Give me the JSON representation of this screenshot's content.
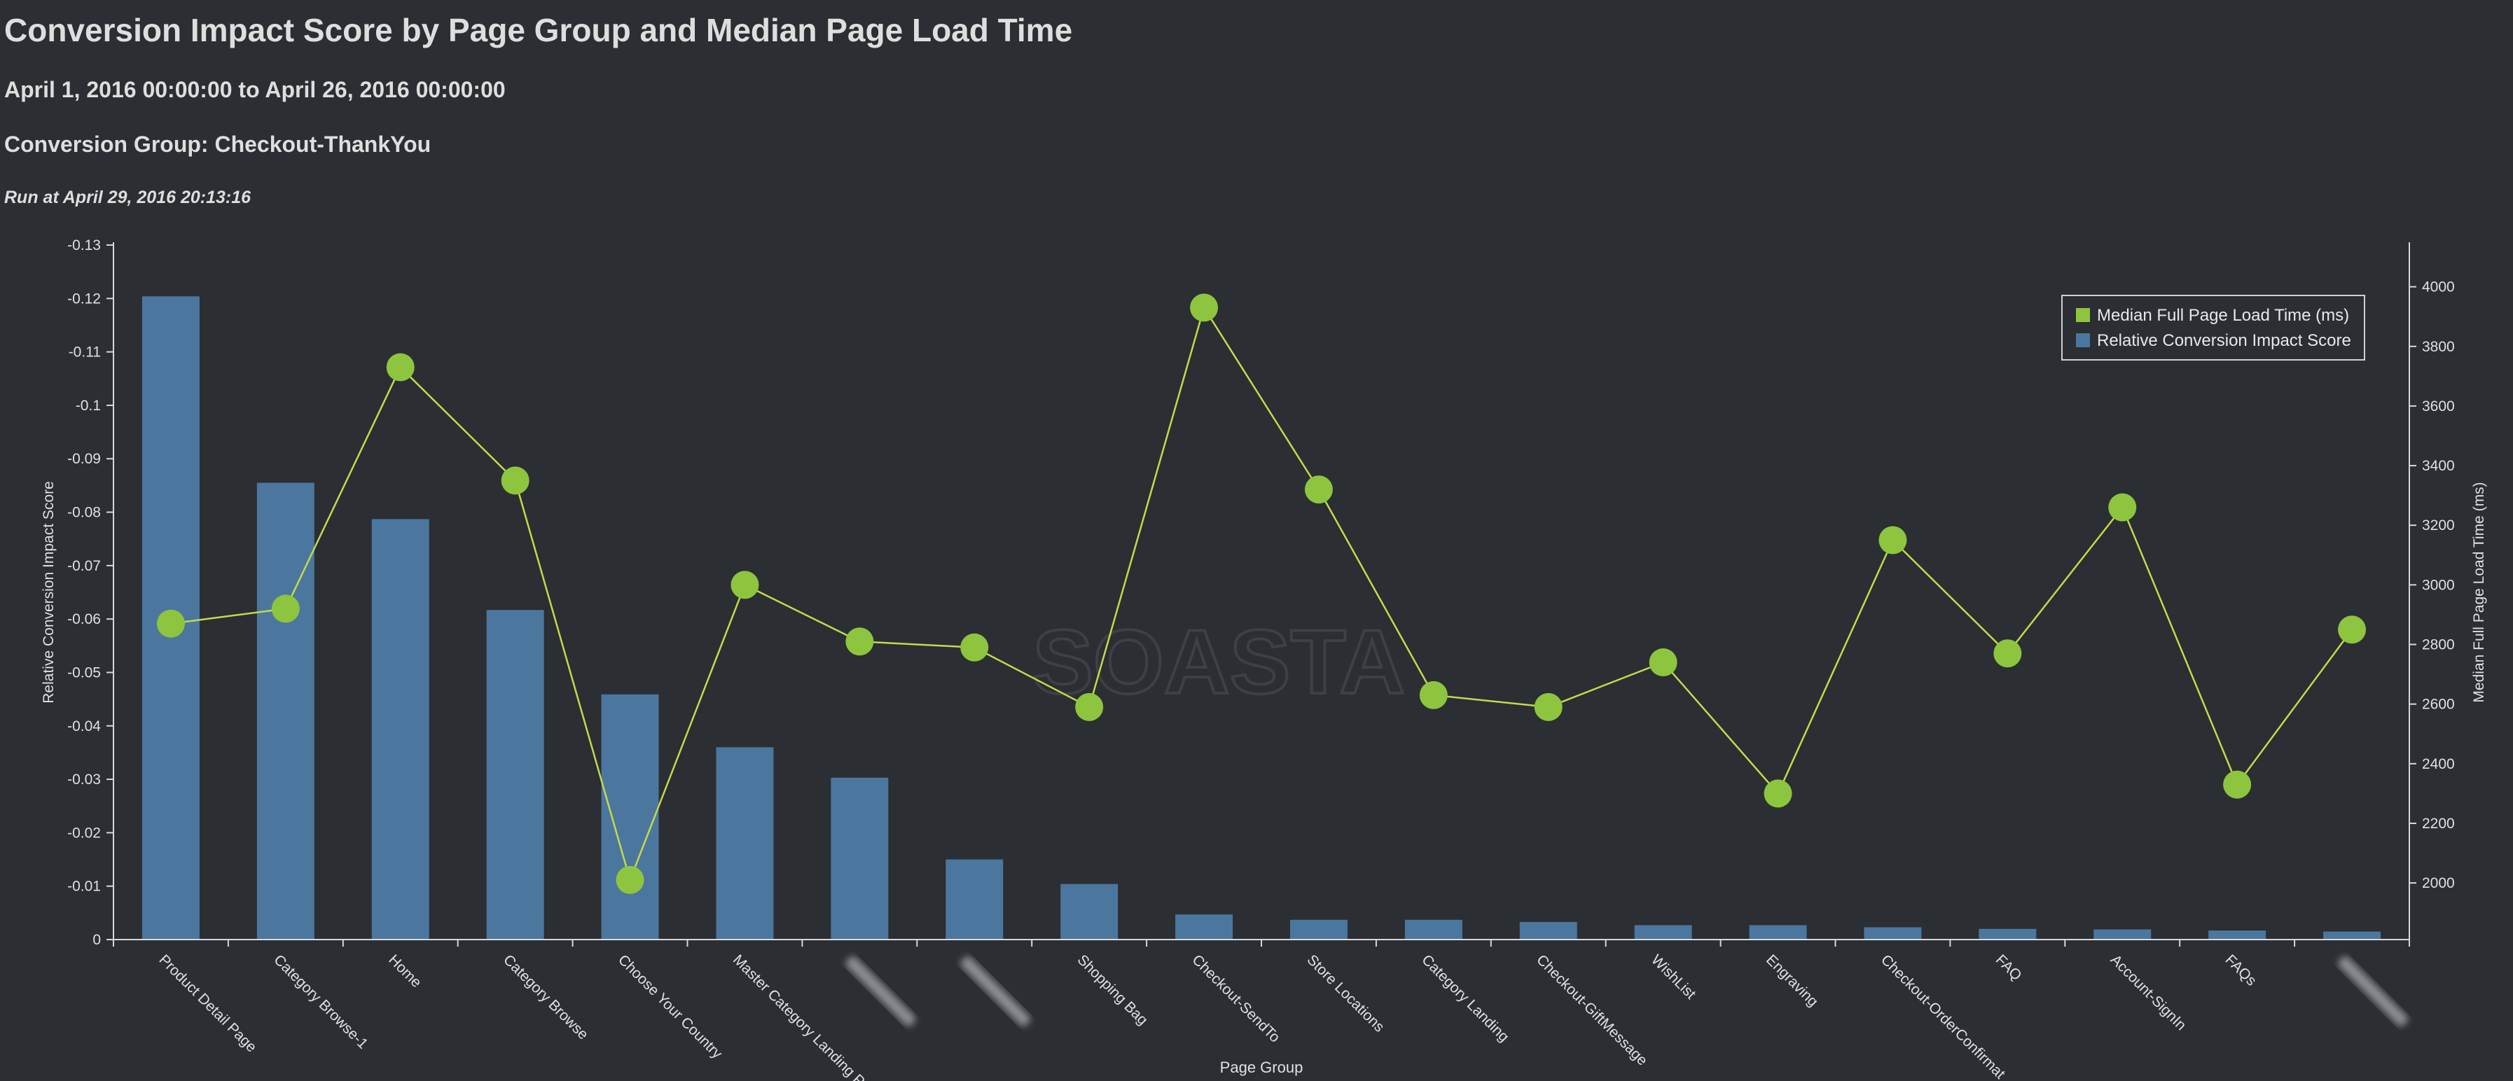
{
  "header": {
    "title": "Conversion Impact Score by Page Group and Median Page Load Time",
    "date_range": "April 1, 2016 00:00:00 to April 26, 2016 00:00:00",
    "conversion_group": "Conversion Group: Checkout-ThankYou",
    "run_at": "Run at April 29, 2016 20:13:16"
  },
  "watermark": "SOASTA",
  "colors": {
    "background": "#2b2e33",
    "bar": "#4b779e",
    "line": "#c5d94a",
    "point": "#8dc53e",
    "axis": "#d8d8d8"
  },
  "chart_data": {
    "type": "bar+line",
    "xlabel": "Page Group",
    "ylabel_left": "Relative Conversion Impact Score",
    "ylabel_right": "Median Full Page Load Time (ms)",
    "legend_position": "top-right",
    "categories": [
      "Product Detail Page",
      "Category Browse-1",
      "Home",
      "Category Browse",
      "Choose Your Country",
      "Master Category Landing P",
      "",
      "",
      "Shopping Bag",
      "Checkout-SendTo",
      "Store Locations",
      "Category Landing",
      "Checkout-GiftMessage",
      "WishList",
      "Engraving",
      "Checkout-OrderConfirmat",
      "FAQ",
      "Account-SignIn",
      "FAQs",
      ""
    ],
    "blurred_category_indices": [
      6,
      7,
      19
    ],
    "left_axis": {
      "ticks": [
        "-0.13",
        "-0.12",
        "-0.11",
        "-0.1",
        "-0.09",
        "-0.08",
        "-0.07",
        "-0.06",
        "-0.05",
        "-0.04",
        "-0.03",
        "-0.02",
        "-0.01",
        "0"
      ],
      "range": [
        0,
        -0.13
      ]
    },
    "right_axis": {
      "ticks": [
        "2000",
        "2200",
        "2400",
        "2600",
        "2800",
        "3000",
        "3200",
        "3400",
        "3600",
        "3800",
        "4000"
      ],
      "range": [
        1810,
        4140
      ]
    },
    "series": [
      {
        "name": "Relative Conversion Impact Score",
        "type": "bar",
        "values": [
          -0.1204,
          -0.0855,
          -0.0787,
          -0.0617,
          -0.0459,
          -0.036,
          -0.0303,
          -0.015,
          -0.0104,
          -0.0047,
          -0.0037,
          -0.0037,
          -0.0033,
          -0.0027,
          -0.0027,
          -0.0023,
          -0.002,
          -0.0019,
          -0.0017,
          -0.0015
        ]
      },
      {
        "name": "Median Full Page Load Time (ms)",
        "type": "line",
        "values": [
          2870,
          2920,
          3730,
          3350,
          2010,
          3000,
          2810,
          2790,
          2590,
          3930,
          3320,
          2630,
          2590,
          2740,
          2300,
          3150,
          2770,
          3260,
          2330,
          2850
        ]
      }
    ]
  }
}
